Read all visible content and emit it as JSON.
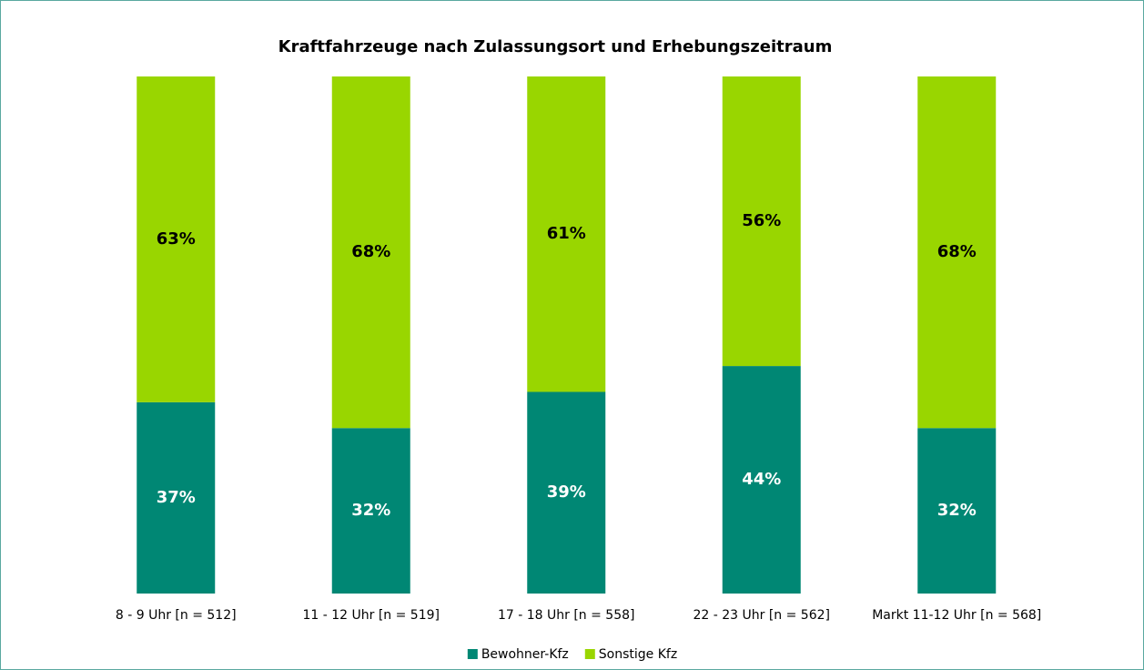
{
  "chart_data": {
    "type": "stacked_bar",
    "title": "Kraftfahrzeuge nach Zulassungsort und Erhebungszeitraum",
    "categories": [
      "8 - 9 Uhr [n = 512]",
      "11 - 12 Uhr [n = 519]",
      "17 - 18 Uhr [n = 558]",
      "22 - 23 Uhr [n = 562]",
      "Markt 11-12 Uhr [n = 568]"
    ],
    "series": [
      {
        "name": "Bewohner-Kfz",
        "color": "#008774",
        "values": [
          37,
          32,
          39,
          44,
          32
        ],
        "value_labels": [
          "37%",
          "32%",
          "39%",
          "44%",
          "32%"
        ]
      },
      {
        "name": "Sonstige Kfz",
        "color": "#99d600",
        "values": [
          63,
          68,
          61,
          56,
          68
        ],
        "value_labels": [
          "63%",
          "68%",
          "61%",
          "56%",
          "68%"
        ]
      }
    ],
    "ylim": [
      0,
      100
    ],
    "legend": "bottom"
  }
}
